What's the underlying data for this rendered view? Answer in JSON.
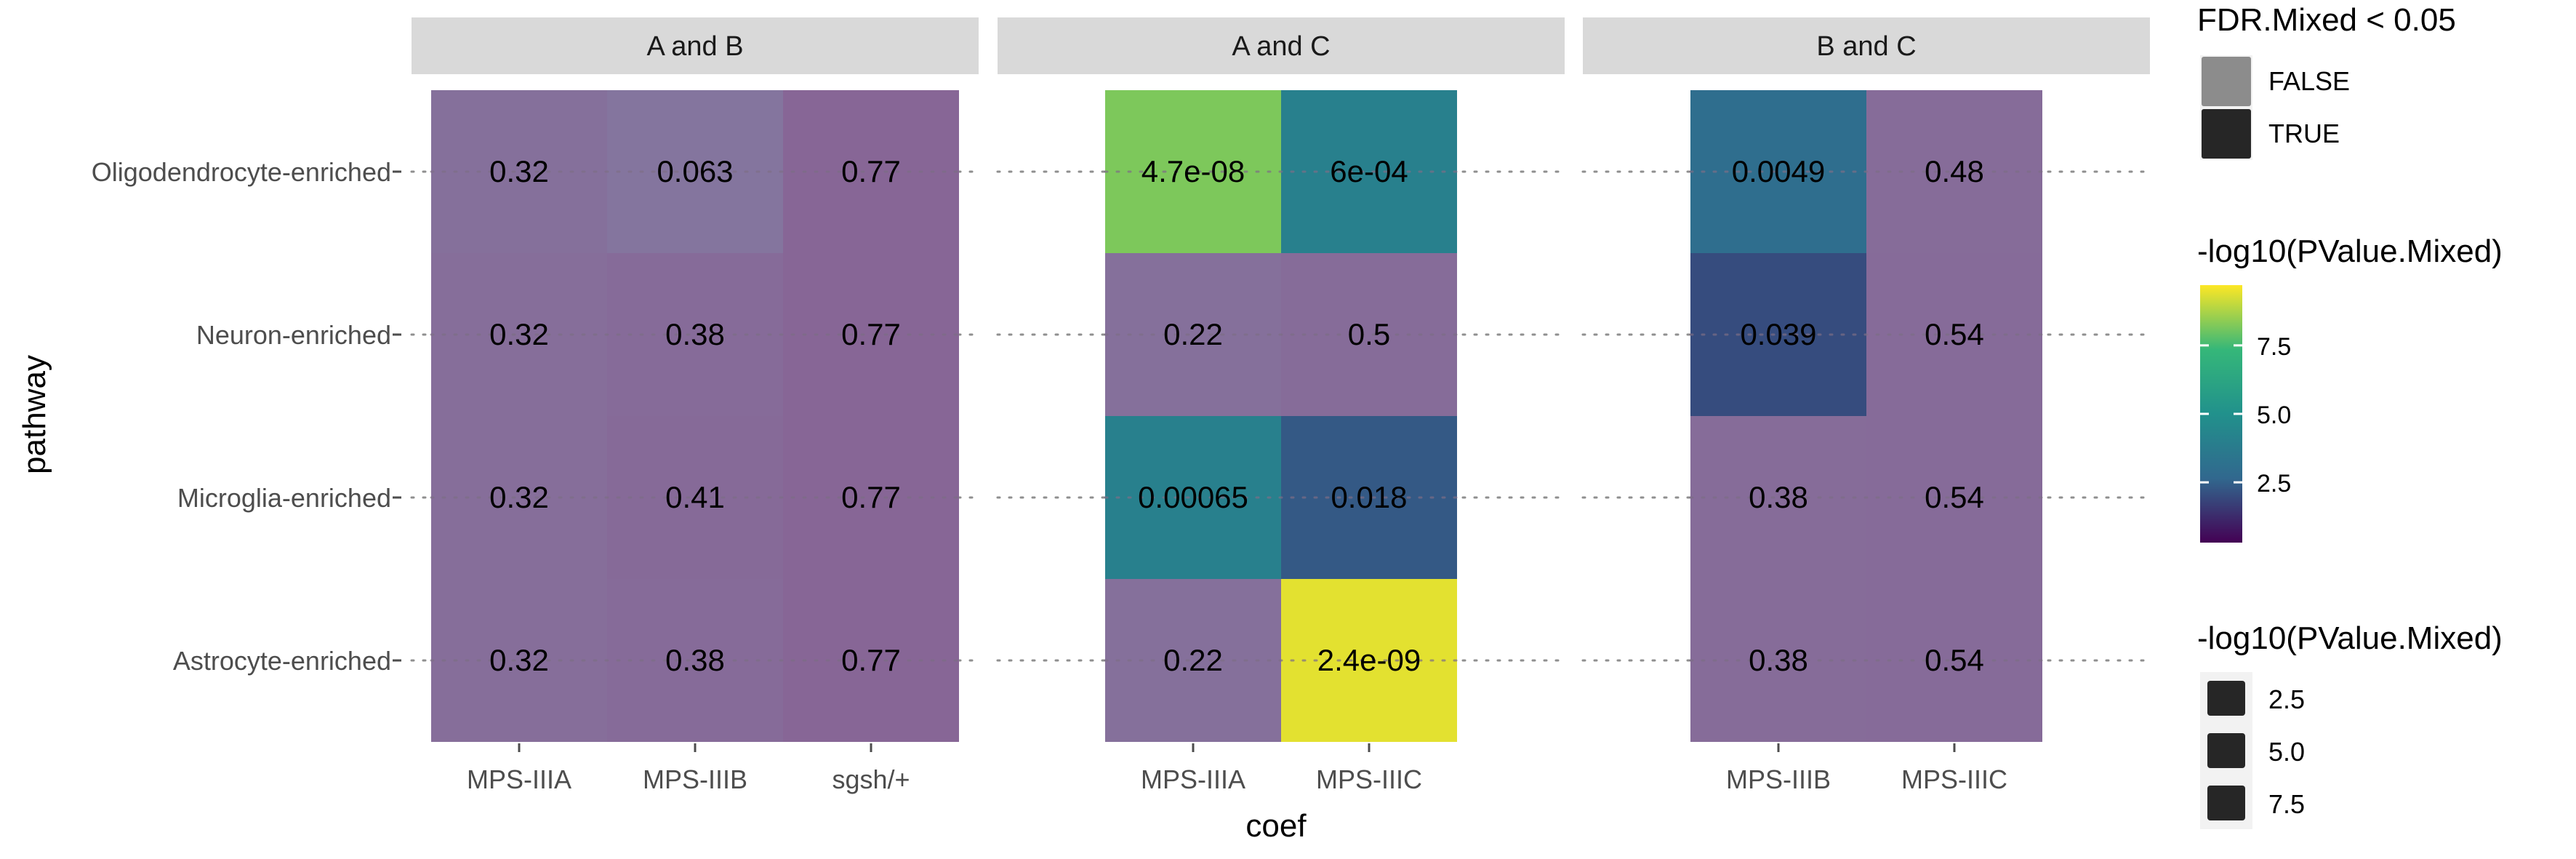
{
  "chart_data": {
    "type": "heatmap",
    "title": "",
    "xlabel": "coef",
    "ylabel": "pathway",
    "rows": [
      "Oligodendrocyte-enriched",
      "Neuron-enriched",
      "Microglia-enriched",
      "Astrocyte-enriched"
    ],
    "panels": [
      {
        "strip": "A and B",
        "columns": [
          "MPS-IIIA",
          "MPS-IIIB",
          "sgsh/+"
        ],
        "labels": [
          [
            "0.32",
            "0.063",
            "0.77"
          ],
          [
            "0.32",
            "0.38",
            "0.77"
          ],
          [
            "0.32",
            "0.41",
            "0.77"
          ],
          [
            "0.32",
            "0.38",
            "0.77"
          ]
        ],
        "neglog10p": [
          [
            1.4,
            1.9,
            0.35
          ],
          [
            1.2,
            0.9,
            0.35
          ],
          [
            1.2,
            0.7,
            0.35
          ],
          [
            1.2,
            0.9,
            0.35
          ]
        ],
        "fdr_significant": [
          [
            false,
            false,
            false
          ],
          [
            false,
            false,
            false
          ],
          [
            false,
            false,
            false
          ],
          [
            false,
            false,
            false
          ]
        ]
      },
      {
        "strip": "A and C",
        "columns": [
          "MPS-IIIA",
          "MPS-IIIC"
        ],
        "labels": [
          [
            "4.7e-08",
            "6e-04"
          ],
          [
            "0.22",
            "0.5"
          ],
          [
            "0.00065",
            "0.018"
          ],
          [
            "0.22",
            "2.4e-09"
          ]
        ],
        "neglog10p": [
          [
            8.2,
            4.0
          ],
          [
            1.4,
            1.0
          ],
          [
            4.0,
            2.3
          ],
          [
            1.4,
            9.4
          ]
        ],
        "fdr_significant": [
          [
            true,
            true
          ],
          [
            false,
            false
          ],
          [
            true,
            true
          ],
          [
            false,
            true
          ]
        ]
      },
      {
        "strip": "B and C",
        "columns": [
          "MPS-IIIB",
          "MPS-IIIC"
        ],
        "labels": [
          [
            "0.0049",
            "0.48"
          ],
          [
            "0.039",
            "0.54"
          ],
          [
            "0.38",
            "0.54"
          ],
          [
            "0.38",
            "0.54"
          ]
        ],
        "neglog10p": [
          [
            3.0,
            1.0
          ],
          [
            2.0,
            0.9
          ],
          [
            1.0,
            0.9
          ],
          [
            1.0,
            0.9
          ]
        ],
        "fdr_significant": [
          [
            true,
            false
          ],
          [
            true,
            false
          ],
          [
            false,
            false
          ],
          [
            false,
            false
          ]
        ]
      }
    ],
    "legend_alpha": {
      "title": "FDR.Mixed < 0.05",
      "entries": [
        {
          "label": "FALSE",
          "color": "#8c8c8c"
        },
        {
          "label": "TRUE",
          "color": "#262626"
        }
      ]
    },
    "legend_fill": {
      "title": "-log10(PValue.Mixed)",
      "ticks": [
        7.5,
        5.0,
        2.5
      ],
      "tick_labels": [
        "7.5",
        "5.0",
        "2.5"
      ],
      "range": [
        0.3,
        9.7
      ],
      "colormap": [
        "#440154",
        "#31688e",
        "#21918c",
        "#35b779",
        "#fde725"
      ]
    },
    "legend_size": {
      "title": "-log10(PValue.Mixed)",
      "entries": [
        "2.5",
        "5.0",
        "7.5"
      ]
    },
    "colors": {
      "insignificant_tint": "#9a82a8",
      "strip_background": "#d9d9d9",
      "tick_color": "#4d4d4d",
      "gridline_dots": "#8f8f8f"
    }
  }
}
